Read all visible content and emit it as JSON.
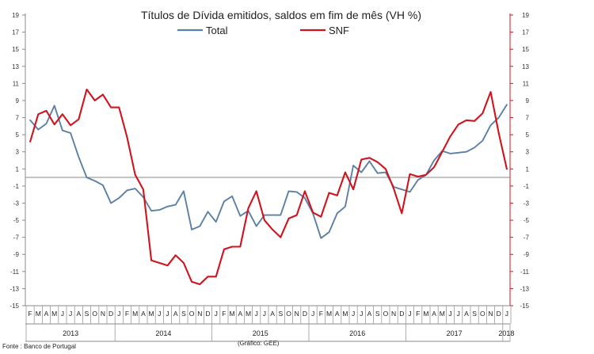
{
  "chart_data": {
    "type": "line",
    "title": "Títulos de Dívida emitidos, saldos em fim de mês  (VH %)",
    "source": "Fonte : Banco de Portugal",
    "credit": "(Gráfico: GEE)",
    "ylim": [
      -15,
      19
    ],
    "yticks": [
      "19",
      "17",
      "15",
      "13",
      "11",
      "9",
      "7",
      "5",
      "3",
      "1",
      "-1",
      "-3",
      "-5",
      "-7",
      "-9",
      "-11",
      "-13",
      "-15"
    ],
    "month_labels": [
      "F",
      "M",
      "A",
      "M",
      "J",
      "J",
      "A",
      "S",
      "O",
      "N",
      "D",
      "J",
      "F",
      "M",
      "A",
      "M",
      "J",
      "J",
      "A",
      "S",
      "O",
      "N",
      "D",
      "J",
      "F",
      "M",
      "A",
      "M",
      "J",
      "J",
      "A",
      "S",
      "O",
      "N",
      "D",
      "J",
      "F",
      "M",
      "A",
      "M",
      "J",
      "J",
      "A",
      "S",
      "O",
      "N",
      "D",
      "J",
      "F",
      "M",
      "A",
      "M",
      "J",
      "J",
      "A",
      "S",
      "O",
      "N",
      "D",
      "J"
    ],
    "year_labels": [
      "2013",
      "2014",
      "2015",
      "2016",
      "2017",
      "2018"
    ],
    "series": [
      {
        "name": "Total",
        "color": "#5b7fa6",
        "values": [
          6.7,
          5.6,
          6.3,
          8.4,
          5.5,
          5.2,
          2.4,
          0.0,
          -0.4,
          -0.9,
          -3.0,
          -2.4,
          -1.5,
          -1.3,
          -2.3,
          -3.9,
          -3.8,
          -3.4,
          -3.2,
          -1.6,
          -6.1,
          -5.7,
          -4.0,
          -5.2,
          -2.8,
          -2.2,
          -4.5,
          -3.9,
          -5.7,
          -4.4,
          -4.4,
          -4.4,
          -1.6,
          -1.7,
          -2.4,
          -4.2,
          -7.1,
          -6.4,
          -4.2,
          -3.4,
          1.4,
          0.6,
          1.9,
          0.5,
          0.6,
          -1.1,
          -1.4,
          -1.7,
          -0.3,
          0.3,
          2.0,
          3.1,
          2.8,
          2.9,
          3.0,
          3.5,
          4.3,
          6.1,
          7.0,
          8.5
        ]
      },
      {
        "name": "SNF",
        "color": "#d0141e",
        "values": [
          4.2,
          7.4,
          7.8,
          6.2,
          7.4,
          6.1,
          6.8,
          10.3,
          9.0,
          9.7,
          8.2,
          8.2,
          4.7,
          0.3,
          -1.4,
          -9.7,
          -10.0,
          -10.3,
          -9.1,
          -10.0,
          -12.2,
          -12.5,
          -11.6,
          -11.6,
          -8.4,
          -8.1,
          -8.1,
          -3.6,
          -1.6,
          -5.0,
          -6.1,
          -7.0,
          -4.8,
          -4.4,
          -1.6,
          -4.1,
          -4.6,
          -1.8,
          -2.1,
          0.6,
          -1.4,
          2.1,
          2.3,
          1.8,
          1.0,
          -1.3,
          -4.2,
          0.4,
          0.1,
          0.3,
          1.2,
          3.0,
          4.8,
          6.2,
          6.7,
          6.6,
          7.5,
          10.0,
          5.2,
          1.0
        ]
      }
    ]
  }
}
